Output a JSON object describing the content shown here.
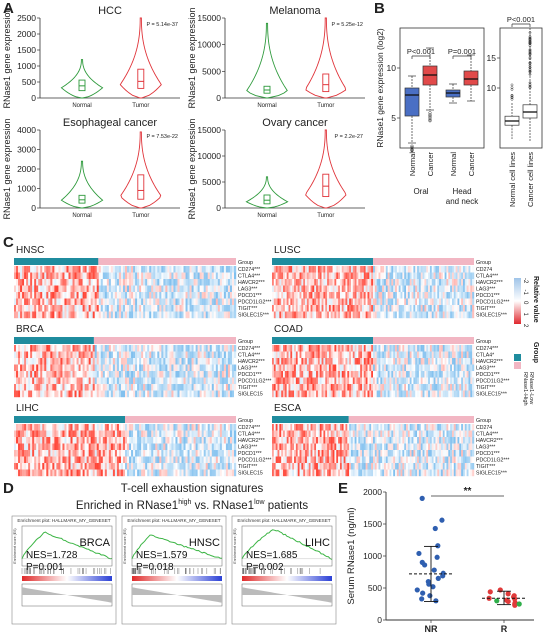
{
  "panel_labels": {
    "a": "A",
    "b": "B",
    "c": "C",
    "d": "D",
    "e": "E"
  },
  "chart_data": [
    {
      "type": "violin",
      "title": "HCC",
      "ylabel": "RNase1 gene expression",
      "categories": [
        "Normal",
        "Tumor"
      ],
      "ylim": [
        0,
        2500
      ],
      "yticks": [
        0,
        500,
        1000,
        1500,
        2000,
        2500
      ],
      "pvalue": "P = 5.14e-37",
      "medians": [
        380,
        520
      ],
      "iqr": [
        [
          230,
          560
        ],
        [
          300,
          900
        ]
      ],
      "whiskers": [
        [
          0,
          1200
        ],
        [
          0,
          2500
        ]
      ],
      "density_peaks": [
        320,
        420
      ]
    },
    {
      "type": "violin",
      "title": "Melanoma",
      "ylabel": "RNase1 gene expression",
      "categories": [
        "Normal",
        "Tumor"
      ],
      "ylim": [
        0,
        15000
      ],
      "yticks": [
        0,
        5000,
        10000,
        15000
      ],
      "pvalue": "P = 5.25e-12",
      "medians": [
        1500,
        2500
      ],
      "iqr": [
        [
          900,
          2200
        ],
        [
          1200,
          4500
        ]
      ],
      "whiskers": [
        [
          0,
          14000
        ],
        [
          0,
          15000
        ]
      ],
      "density_peaks": [
        1300,
        1600
      ]
    },
    {
      "type": "violin",
      "title": "Esophageal cancer",
      "ylabel": "RNase1 gene expression",
      "categories": [
        "Normal",
        "Tumor"
      ],
      "ylim": [
        0,
        4000
      ],
      "yticks": [
        0,
        1000,
        2000,
        3000,
        4000
      ],
      "pvalue": "P = 7.53e-22",
      "medians": [
        420,
        900
      ],
      "iqr": [
        [
          250,
          650
        ],
        [
          450,
          1700
        ]
      ],
      "whiskers": [
        [
          0,
          2400
        ],
        [
          0,
          3900
        ]
      ],
      "density_peaks": [
        400,
        600
      ]
    },
    {
      "type": "violin",
      "title": "Ovary cancer",
      "ylabel": "RNase1 gene expression",
      "categories": [
        "Normal",
        "Tumor"
      ],
      "ylim": [
        0,
        15000
      ],
      "yticks": [
        0,
        5000,
        10000,
        15000
      ],
      "pvalue": "P = 2.2e-27",
      "medians": [
        1500,
        4200
      ],
      "iqr": [
        [
          800,
          2500
        ],
        [
          2200,
          6500
        ]
      ],
      "whiskers": [
        [
          0,
          6000
        ],
        [
          0,
          15000
        ]
      ],
      "density_peaks": [
        1200,
        2600
      ]
    },
    {
      "type": "box",
      "ylabel": "RNase1 gene expression (log2)",
      "ylim": [
        2,
        14
      ],
      "yticks": [
        5,
        10
      ],
      "categories": [
        "Normal",
        "Cancer",
        "Normal",
        "Cancer"
      ],
      "group_labels": [
        "Oral",
        "Head and neck"
      ],
      "colors": [
        "#4a6fc4",
        "#e14a4a",
        "#4a6fc4",
        "#e14a4a"
      ],
      "boxes": [
        {
          "q1": 5.2,
          "median": 7.3,
          "q3": 8.0,
          "low": 2.5,
          "high": 9.2
        },
        {
          "q1": 8.3,
          "median": 9.3,
          "q3": 10.2,
          "low": 5.8,
          "high": 12.0
        },
        {
          "q1": 7.1,
          "median": 7.5,
          "q3": 7.8,
          "low": 6.5,
          "high": 8.4
        },
        {
          "q1": 8.3,
          "median": 8.9,
          "q3": 9.7,
          "low": 6.7,
          "high": 11.3
        }
      ],
      "brackets": [
        [
          "P<0.001",
          0,
          1
        ],
        [
          "P=0.001",
          2,
          3
        ]
      ]
    },
    {
      "type": "box",
      "categories": [
        "Normal cell lines",
        "Cancer cell lines"
      ],
      "ylim": [
        0,
        20
      ],
      "yticks": [
        10,
        15
      ],
      "boxes": [
        {
          "q1": 3.8,
          "median": 4.5,
          "q3": 5.3,
          "low": 1.5,
          "high": 7.5
        },
        {
          "q1": 5.0,
          "median": 6.0,
          "q3": 7.2,
          "low": 1.0,
          "high": 20.0
        }
      ],
      "brackets": [
        [
          "P<0.001",
          0,
          1
        ]
      ]
    },
    {
      "type": "heatmap",
      "panels": [
        {
          "title": "HNSC",
          "genes": [
            "CD274***",
            "CTLA4***",
            "HAVCR2***",
            "LAG3***",
            "PDCD1***",
            "PDCD1LG2***",
            "TIGIT***",
            "SIGLEC15***"
          ],
          "high_fraction": 0.38
        },
        {
          "title": "LUSC",
          "genes": [
            "CD274",
            "CTLA4***",
            "HAVCR2***",
            "LAG3***",
            "PDCD1***",
            "PDCD1LG2***",
            "TIGIT***",
            "SIGLEC15***"
          ],
          "high_fraction": 0.5
        },
        {
          "title": "BRCA",
          "genes": [
            "CD274***",
            "CTLA4***",
            "HAVCR2***",
            "LAG3***",
            "PDCD1***",
            "PDCD1LG2***",
            "TIGIT***",
            "SIGLEC15"
          ],
          "high_fraction": 0.36
        },
        {
          "title": "COAD",
          "genes": [
            "CD274***",
            "CTLA4*",
            "HAVCR2***",
            "LAG3***",
            "PDCD1***",
            "PDCD1LG2***",
            "TIGIT***",
            "SIGLEC15***"
          ],
          "high_fraction": 0.5
        },
        {
          "title": "LIHC",
          "genes": [
            "CD274***",
            "CTLA4***",
            "HAVCR2***",
            "LAG3***",
            "PDCD1***",
            "PDCD1LG2***",
            "TIGIT***",
            "SIGLEC15"
          ],
          "high_fraction": 0.5
        },
        {
          "title": "ESCA",
          "genes": [
            "CD274",
            "CTLA4***",
            "HAVCR2***",
            "LAG3***",
            "PDCD1***",
            "PDCD1LG2***",
            "TIGIT***",
            "SIGLEC15***"
          ],
          "high_fraction": 0.38
        }
      ],
      "group_label": "Group",
      "value_scale": {
        "title": "Relative value",
        "ticks": [
          "2",
          "1",
          "0",
          "-1",
          "-2"
        ]
      },
      "group_legend": {
        "title": "Group",
        "items": [
          {
            "label": "RNase1-High",
            "color": "#1f8c9e"
          },
          {
            "label": "RNase1-Low",
            "color": "#f2b6c3"
          }
        ]
      }
    },
    {
      "type": "line",
      "figure_title_line1": "T-cell exhaustion signatures",
      "figure_title_line2_parts": [
        "Enriched in RNase1",
        "high",
        " vs. RNase1",
        "low",
        " patients"
      ],
      "panels": [
        {
          "header": "Enrichment plot: HALLMARK_MY_GENESET",
          "cancer": "BRCA",
          "nes": "NES=1.728",
          "p": "P=0.001",
          "peak_rank_fraction": 0.25,
          "max_es": 0.55
        },
        {
          "header": "Enrichment plot: HALLMARK_MY_GENESET",
          "cancer": "HNSC",
          "nes": "NES=1.579",
          "p": "P=0.018",
          "peak_rank_fraction": 0.2,
          "max_es": 0.5
        },
        {
          "header": "Enrichment plot: HALLMARK_MY_GENESET",
          "cancer": "LIHC",
          "nes": "NES=1.685",
          "p": "P=0.002",
          "peak_rank_fraction": 0.35,
          "max_es": 0.62
        }
      ]
    },
    {
      "type": "scatter",
      "ylabel": "Serum RNase1 (ng/ml)",
      "categories": [
        "NR",
        "R"
      ],
      "ylim": [
        0,
        2000
      ],
      "yticks": [
        0,
        500,
        1000,
        1500,
        2000
      ],
      "significance": "**",
      "groups": [
        {
          "name": "NR",
          "color": "#2f5fb0",
          "mean": 720,
          "sd_low": 290,
          "sd_high": 1150,
          "values": [
            1900,
            1560,
            1430,
            1160,
            1040,
            980,
            900,
            860,
            780,
            730,
            690,
            650,
            600,
            560,
            520,
            470,
            420,
            380,
            330,
            300
          ]
        },
        {
          "name": "R",
          "color": "#e03a3a",
          "mean": 340,
          "sd_low": 240,
          "sd_high": 450,
          "values": [
            470,
            440,
            410,
            380,
            360,
            340,
            330,
            310,
            290,
            270,
            250,
            230
          ],
          "highlight_color": "#2fae4a",
          "highlight_values": [
            300,
            250
          ]
        }
      ]
    }
  ]
}
